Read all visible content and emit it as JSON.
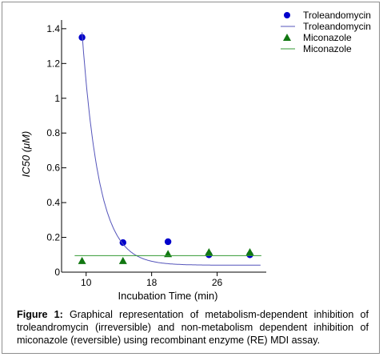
{
  "chart_data": {
    "type": "scatter",
    "xlabel": "Incubation Time (min)",
    "ylabel": "IC50 (μM)",
    "xlim": [
      7,
      32
    ],
    "ylim": [
      0,
      1.45
    ],
    "x_ticks": [
      10,
      18,
      26
    ],
    "y_ticks": [
      0,
      0.2,
      0.4,
      0.6,
      0.8,
      1,
      1.2,
      1.4
    ],
    "y_tick_labels": [
      "0",
      "0.2",
      "0.4",
      "0.6",
      "0.8",
      "1",
      "1.2",
      "1.4"
    ],
    "grid": false,
    "legend_position": "top-right",
    "series": [
      {
        "name": "Troleandomycin",
        "kind": "points",
        "marker": "circle",
        "color": "#0000cc",
        "x": [
          9.5,
          14.5,
          20,
          25,
          30
        ],
        "y": [
          1.35,
          0.17,
          0.175,
          0.1,
          0.1
        ]
      },
      {
        "name": "Troleandomycin",
        "kind": "line",
        "color": "#5555bb",
        "model": {
          "plateau": 0.04,
          "amplitude": 1.34,
          "rate": 0.48,
          "x0": 9.5
        }
      },
      {
        "name": "Miconazole",
        "kind": "points",
        "marker": "triangle",
        "color": "#117711",
        "x": [
          9.5,
          14.5,
          20,
          25,
          30
        ],
        "y": [
          0.065,
          0.065,
          0.105,
          0.115,
          0.115
        ]
      },
      {
        "name": "Miconazole",
        "kind": "line",
        "color": "#339933",
        "flat_value": 0.095
      }
    ]
  },
  "caption": {
    "label": "Figure 1:",
    "text": " Graphical representation of metabolism-dependent inhibition of troleandromycin (irreversible) and non-metabolism dependent inhibition of miconazole (reversible) using recombinant enzyme (RE) MDI assay."
  }
}
